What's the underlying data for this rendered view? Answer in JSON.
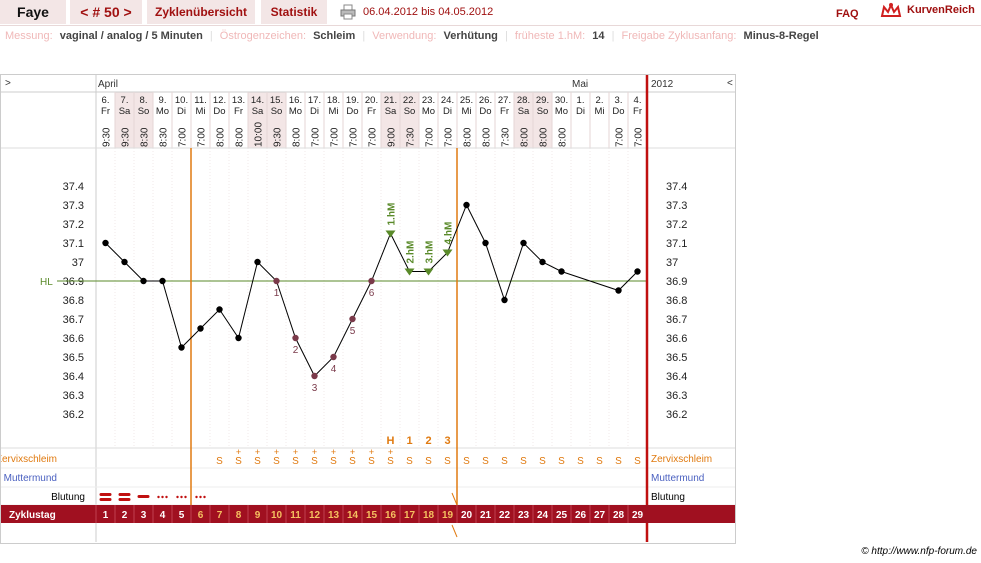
{
  "header": {
    "user": "Faye",
    "cycle_nav": "< # 50 >",
    "cycle_overview": "Zyklenübersicht",
    "statistics": "Statistik",
    "print_icon": "printer-icon",
    "date_range": "06.04.2012 bis 04.05.2012",
    "faq": "FAQ",
    "brand": "KurvenReich",
    "brand_icon": "crown-icon"
  },
  "meta": {
    "messung_label": "Messung:",
    "messung_value": "vaginal / analog / 5 Minuten",
    "oestrogen_label": "Östrogenzeichen:",
    "oestrogen_value": "Schleim",
    "verwendung_label": "Verwendung:",
    "verwendung_value": "Verhütung",
    "frueheste_label": "früheste 1.hM:",
    "frueheste_value": "14",
    "freigabe_label": "Freigabe Zyklusanfang:",
    "freigabe_value": "Minus-8-Regel"
  },
  "chart": {
    "nav_left": ">",
    "nav_right": "<",
    "month_april": "April",
    "month_mai": "Mai",
    "year": "2012",
    "hl_label": "HL",
    "row_zervix": "Zervixschleim",
    "row_muttermund": "Muttermund",
    "row_blutung": "Blutung",
    "row_zyklustag": "Zyklustag",
    "copyright": "© http://www.nfp-forum.de"
  },
  "chart_data": {
    "type": "line",
    "ylim": [
      36.2,
      37.4
    ],
    "yticks": [
      "37.4",
      "37.3",
      "37.2",
      "37.1",
      "37",
      "36.9",
      "36.8",
      "36.7",
      "36.6",
      "36.5",
      "36.4",
      "36.3",
      "36.2"
    ],
    "coverline": 36.9,
    "days": [
      {
        "d": "6.",
        "w": "Fr",
        "t": "9:30",
        "cd": "1",
        "temp": 37.1,
        "bl": "heavy",
        "pink": false
      },
      {
        "d": "7.",
        "w": "Sa",
        "t": "9:30",
        "cd": "2",
        "temp": 37.0,
        "bl": "heavy",
        "pink": true
      },
      {
        "d": "8.",
        "w": "So",
        "t": "8:30",
        "cd": "3",
        "temp": 36.9,
        "bl": "medium",
        "pink": true
      },
      {
        "d": "9.",
        "w": "Mo",
        "t": "8:30",
        "cd": "4",
        "temp": 36.9,
        "bl": "light",
        "pink": false
      },
      {
        "d": "10.",
        "w": "Di",
        "t": "7:00",
        "cd": "5",
        "temp": 36.55,
        "bl": "light",
        "pink": false
      },
      {
        "d": "11.",
        "w": "Mi",
        "t": "7:00",
        "cd": "6",
        "temp": 36.65,
        "bl": "light",
        "pink": false
      },
      {
        "d": "12.",
        "w": "Do",
        "t": "8:00",
        "cd": "7",
        "temp": 36.75,
        "cm": "S",
        "pink": false
      },
      {
        "d": "13.",
        "w": "Fr",
        "t": "8:00",
        "cd": "8",
        "temp": 36.6,
        "cm": "S+",
        "pink": false
      },
      {
        "d": "14.",
        "w": "Sa",
        "t": "10:00",
        "cd": "9",
        "temp": 37.0,
        "cm": "S+",
        "pink": true
      },
      {
        "d": "15.",
        "w": "So",
        "t": "9:30",
        "cd": "10",
        "temp": 36.9,
        "cm": "S+",
        "lbl": "1",
        "pink": true
      },
      {
        "d": "16.",
        "w": "Mo",
        "t": "8:00",
        "cd": "11",
        "temp": 36.6,
        "cm": "S+",
        "lbl": "2",
        "pink": false
      },
      {
        "d": "17.",
        "w": "Di",
        "t": "7:00",
        "cd": "12",
        "temp": 36.4,
        "cm": "S+",
        "lbl": "3",
        "pink": false
      },
      {
        "d": "18.",
        "w": "Mi",
        "t": "7:00",
        "cd": "13",
        "temp": 36.5,
        "cm": "S+",
        "lbl": "4",
        "pink": false
      },
      {
        "d": "19.",
        "w": "Do",
        "t": "7:00",
        "cd": "14",
        "temp": 36.7,
        "cm": "S+",
        "lbl": "5",
        "pink": false
      },
      {
        "d": "20.",
        "w": "Fr",
        "t": "7:00",
        "cd": "15",
        "temp": 36.9,
        "cm": "S+",
        "lbl": "6",
        "pink": false
      },
      {
        "d": "21.",
        "w": "Sa",
        "t": "9:00",
        "cd": "16",
        "temp": 37.15,
        "cm": "S+",
        "hm": "1.hM",
        "top": "H",
        "pink": true
      },
      {
        "d": "22.",
        "w": "So",
        "t": "7:30",
        "cd": "17",
        "temp": 36.95,
        "cm": "S",
        "hm": "2.hM",
        "top": "1",
        "pink": true
      },
      {
        "d": "23.",
        "w": "Mo",
        "t": "7:00",
        "cd": "18",
        "temp": 36.95,
        "cm": "S",
        "hm": "3.hM",
        "top": "2",
        "pink": false
      },
      {
        "d": "24.",
        "w": "Di",
        "t": "7:00",
        "cd": "19",
        "temp": 37.05,
        "cm": "S",
        "hm": "4.hM",
        "top": "3",
        "pink": false
      },
      {
        "d": "25.",
        "w": "Mi",
        "t": "8:00",
        "cd": "20",
        "temp": 37.3,
        "cm": "S",
        "pink": false
      },
      {
        "d": "26.",
        "w": "Do",
        "t": "8:00",
        "cd": "21",
        "temp": 37.1,
        "cm": "S",
        "pink": false
      },
      {
        "d": "27.",
        "w": "Fr",
        "t": "7:30",
        "cd": "22",
        "temp": 36.8,
        "cm": "S",
        "pink": false
      },
      {
        "d": "28.",
        "w": "Sa",
        "t": "8:00",
        "cd": "23",
        "temp": 37.1,
        "cm": "S",
        "pink": true
      },
      {
        "d": "29.",
        "w": "So",
        "t": "8:00",
        "cd": "24",
        "temp": 37.0,
        "cm": "S",
        "pink": true
      },
      {
        "d": "30.",
        "w": "Mo",
        "t": "8:00",
        "cd": "25",
        "temp": 36.95,
        "cm": "S",
        "pink": false
      },
      {
        "d": "1.",
        "w": "Di",
        "t": "",
        "cd": "26",
        "temp": null,
        "cm": "S",
        "pink": false
      },
      {
        "d": "2.",
        "w": "Mi",
        "t": "",
        "cd": "27",
        "temp": null,
        "cm": "S",
        "pink": false
      },
      {
        "d": "3.",
        "w": "Do",
        "t": "7:00",
        "cd": "28",
        "temp": 36.85,
        "cm": "S",
        "pink": false
      },
      {
        "d": "4.",
        "w": "Fr",
        "t": "7:00",
        "cd": "29",
        "temp": 36.95,
        "cm": "S",
        "pink": false
      }
    ],
    "colors": {
      "accent": "#a01020",
      "orange": "#e07a10",
      "green": "#5a8a2a",
      "pink": "#f3e6e6"
    }
  }
}
